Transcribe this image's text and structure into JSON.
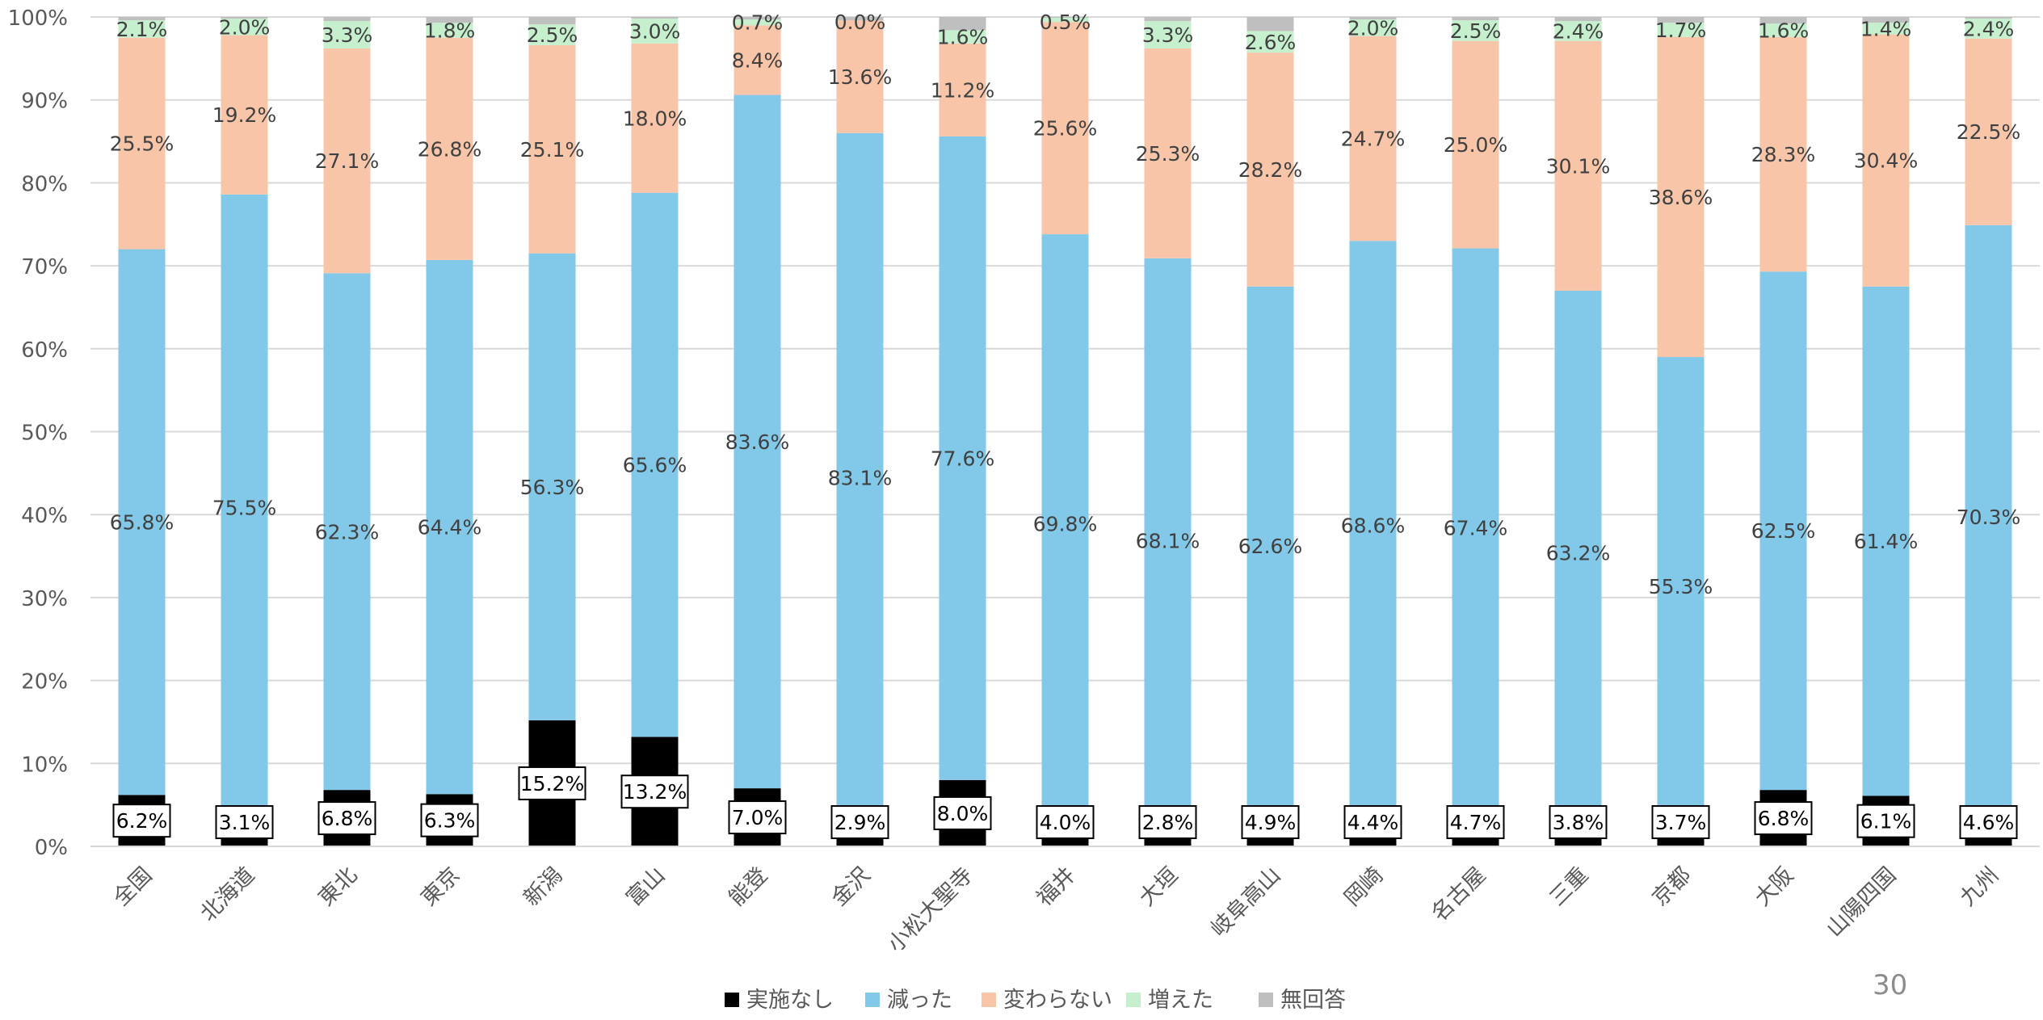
{
  "page_number": "30",
  "chart_data": {
    "type": "bar",
    "stacked": true,
    "percent": true,
    "ylim": [
      0,
      100
    ],
    "yticks": [
      "0%",
      "10%",
      "20%",
      "30%",
      "40%",
      "50%",
      "60%",
      "70%",
      "80%",
      "90%",
      "100%"
    ],
    "grid": true,
    "legend_position": "bottom",
    "categories": [
      "全国",
      "北海道",
      "東北",
      "東京",
      "新潟",
      "富山",
      "能登",
      "金沢",
      "小松大聖寺",
      "福井",
      "大垣",
      "岐阜高山",
      "岡崎",
      "名古屋",
      "三重",
      "京都",
      "大阪",
      "山陽四国",
      "九州"
    ],
    "series": [
      {
        "name": "実施なし",
        "color": "#000000",
        "values": [
          6.2,
          3.1,
          6.8,
          6.3,
          15.2,
          13.2,
          7.0,
          2.9,
          8.0,
          4.0,
          2.8,
          4.9,
          4.4,
          4.7,
          3.8,
          3.7,
          6.8,
          6.1,
          4.6
        ],
        "labels": [
          "6.2%",
          "3.1%",
          "6.8%",
          "6.3%",
          "15.2%",
          "13.2%",
          "7.0%",
          "2.9%",
          "8.0%",
          "4.0%",
          "2.8%",
          "4.9%",
          "4.4%",
          "4.7%",
          "3.8%",
          "3.7%",
          "6.8%",
          "6.1%",
          "4.6%"
        ]
      },
      {
        "name": "減った",
        "color": "#82c8e8",
        "values": [
          65.8,
          75.5,
          62.3,
          64.4,
          56.3,
          65.6,
          83.6,
          83.1,
          77.6,
          69.8,
          68.1,
          62.6,
          68.6,
          67.4,
          63.2,
          55.3,
          62.5,
          61.4,
          70.3
        ],
        "labels": [
          "65.8%",
          "75.5%",
          "62.3%",
          "64.4%",
          "56.3%",
          "65.6%",
          "83.6%",
          "83.1%",
          "77.6%",
          "69.8%",
          "68.1%",
          "62.6%",
          "68.6%",
          "67.4%",
          "63.2%",
          "55.3%",
          "62.5%",
          "61.4%",
          "70.3%"
        ]
      },
      {
        "name": "変わらない",
        "color": "#f8c5a8",
        "values": [
          25.5,
          19.2,
          27.1,
          26.8,
          25.1,
          18.0,
          8.4,
          13.6,
          11.2,
          25.6,
          25.3,
          28.2,
          24.7,
          25.0,
          30.1,
          38.6,
          28.3,
          30.4,
          22.5
        ],
        "labels": [
          "25.5%",
          "19.2%",
          "27.1%",
          "26.8%",
          "25.1%",
          "18.0%",
          "8.4%",
          "13.6%",
          "11.2%",
          "25.6%",
          "25.3%",
          "28.2%",
          "24.7%",
          "25.0%",
          "30.1%",
          "38.6%",
          "28.3%",
          "30.4%",
          "22.5%"
        ]
      },
      {
        "name": "増えた",
        "color": "#c6efce",
        "values": [
          2.1,
          2.0,
          3.3,
          1.8,
          2.5,
          3.0,
          0.7,
          0.0,
          1.6,
          0.5,
          3.3,
          2.6,
          2.0,
          2.5,
          2.4,
          1.7,
          1.6,
          1.4,
          2.4
        ],
        "labels": [
          "2.1%",
          "2.0%",
          "3.3%",
          "1.8%",
          "2.5%",
          "3.0%",
          "0.7%",
          "0.0%",
          "1.6%",
          "0.5%",
          "3.3%",
          "2.6%",
          "2.0%",
          "2.5%",
          "2.4%",
          "1.7%",
          "1.6%",
          "1.4%",
          "2.4%"
        ]
      },
      {
        "name": "無回答",
        "color": "#bfbfbf",
        "values": [
          0.4,
          0.2,
          0.5,
          0.7,
          0.9,
          0.2,
          0.3,
          0.4,
          1.6,
          0.1,
          0.5,
          1.7,
          0.3,
          0.4,
          0.5,
          0.7,
          0.8,
          0.7,
          0.2
        ]
      }
    ]
  }
}
